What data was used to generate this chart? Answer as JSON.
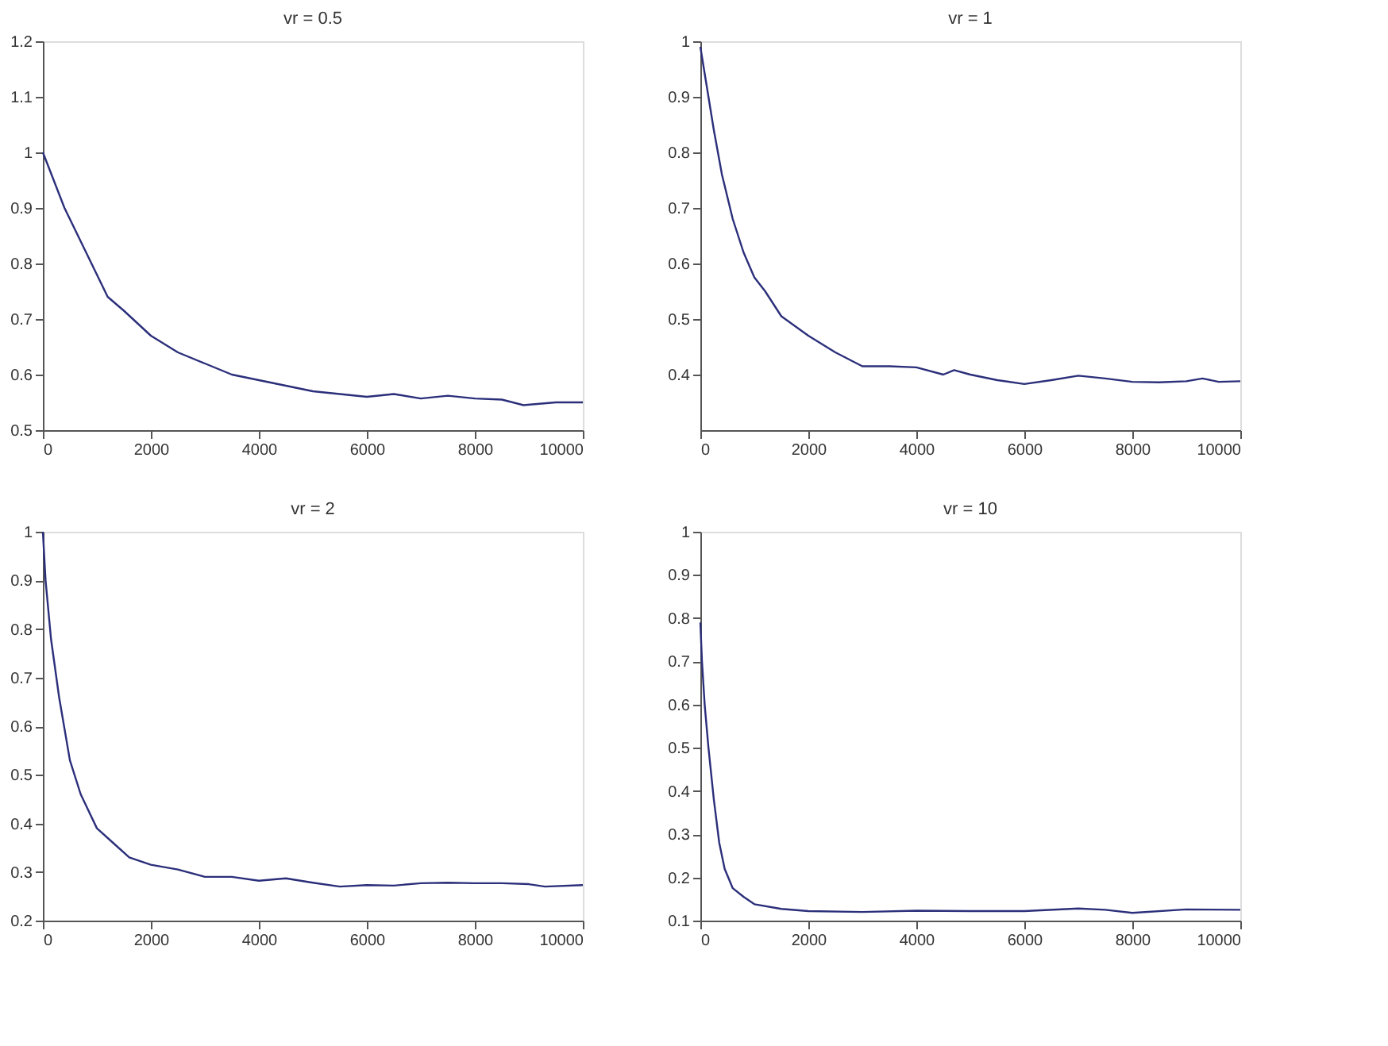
{
  "chart_data": [
    {
      "type": "line",
      "title": "vr = 0.5",
      "xlim": [
        0,
        10000
      ],
      "xticks": [
        0,
        2000,
        4000,
        6000,
        8000,
        10000
      ],
      "ylim": [
        0.5,
        1.2
      ],
      "yticks": [
        0.5,
        0.6,
        0.7,
        0.8,
        0.9,
        1,
        1.1,
        1.2
      ],
      "grid": false,
      "series": [
        {
          "color": "#2b2f7a",
          "x": [
            0,
            200,
            400,
            600,
            800,
            1000,
            1200,
            1500,
            2000,
            2500,
            3000,
            3500,
            4000,
            4500,
            5000,
            5500,
            6000,
            6500,
            7000,
            7500,
            8000,
            8500,
            8900,
            9500,
            10000
          ],
          "values": [
            1.0,
            0.95,
            0.9,
            0.86,
            0.82,
            0.78,
            0.74,
            0.715,
            0.67,
            0.64,
            0.62,
            0.6,
            0.59,
            0.58,
            0.57,
            0.565,
            0.56,
            0.565,
            0.557,
            0.562,
            0.557,
            0.555,
            0.545,
            0.55,
            0.55
          ]
        }
      ]
    },
    {
      "type": "line",
      "title": "vr = 1",
      "xlim": [
        0,
        10000
      ],
      "xticks": [
        0,
        2000,
        4000,
        6000,
        8000,
        10000
      ],
      "ylim": [
        0.3,
        1
      ],
      "yticks": [
        0.4,
        0.5,
        0.6,
        0.7,
        0.8,
        0.9,
        1
      ],
      "grid": false,
      "series": [
        {
          "color": "#2b2f7a",
          "x": [
            0,
            100,
            250,
            400,
            600,
            800,
            1000,
            1200,
            1500,
            2000,
            2500,
            3000,
            3500,
            4000,
            4500,
            4700,
            5000,
            5500,
            6000,
            6500,
            7000,
            7500,
            8000,
            8500,
            9000,
            9300,
            9600,
            10000
          ],
          "values": [
            0.99,
            0.93,
            0.84,
            0.76,
            0.68,
            0.62,
            0.575,
            0.55,
            0.505,
            0.47,
            0.44,
            0.415,
            0.415,
            0.413,
            0.4,
            0.408,
            0.4,
            0.39,
            0.383,
            0.39,
            0.398,
            0.393,
            0.387,
            0.386,
            0.388,
            0.393,
            0.387,
            0.388
          ]
        }
      ]
    },
    {
      "type": "line",
      "title": "vr = 2",
      "xlim": [
        0,
        10000
      ],
      "xticks": [
        0,
        2000,
        4000,
        6000,
        8000,
        10000
      ],
      "ylim": [
        0.2,
        1
      ],
      "yticks": [
        0.2,
        0.3,
        0.4,
        0.5,
        0.6,
        0.7,
        0.8,
        0.9,
        1
      ],
      "grid": false,
      "series": [
        {
          "color": "#2b2f7a",
          "x": [
            0,
            50,
            150,
            300,
            500,
            700,
            1000,
            1300,
            1600,
            2000,
            2500,
            3000,
            3500,
            4000,
            4500,
            5000,
            5500,
            6000,
            6500,
            7000,
            7500,
            8000,
            8500,
            9000,
            9300,
            10000
          ],
          "values": [
            1.0,
            0.9,
            0.78,
            0.66,
            0.53,
            0.46,
            0.39,
            0.36,
            0.33,
            0.315,
            0.305,
            0.29,
            0.29,
            0.282,
            0.287,
            0.278,
            0.27,
            0.273,
            0.272,
            0.277,
            0.278,
            0.277,
            0.277,
            0.275,
            0.27,
            0.273
          ]
        }
      ]
    },
    {
      "type": "line",
      "title": "vr = 10",
      "xlim": [
        0,
        10000
      ],
      "xticks": [
        0,
        2000,
        4000,
        6000,
        8000,
        10000
      ],
      "ylim": [
        0.1,
        1
      ],
      "yticks": [
        0.1,
        0.2,
        0.3,
        0.4,
        0.5,
        0.6,
        0.7,
        0.8,
        0.9,
        1
      ],
      "grid": false,
      "series": [
        {
          "color": "#2b2f7a",
          "x": [
            0,
            30,
            80,
            150,
            250,
            350,
            450,
            600,
            800,
            1000,
            1500,
            2000,
            3000,
            4000,
            5000,
            6000,
            7000,
            7500,
            8000,
            9000,
            10000
          ],
          "values": [
            0.79,
            0.7,
            0.6,
            0.5,
            0.38,
            0.28,
            0.22,
            0.175,
            0.155,
            0.138,
            0.127,
            0.122,
            0.12,
            0.123,
            0.122,
            0.122,
            0.128,
            0.125,
            0.118,
            0.126,
            0.125
          ]
        }
      ]
    }
  ]
}
